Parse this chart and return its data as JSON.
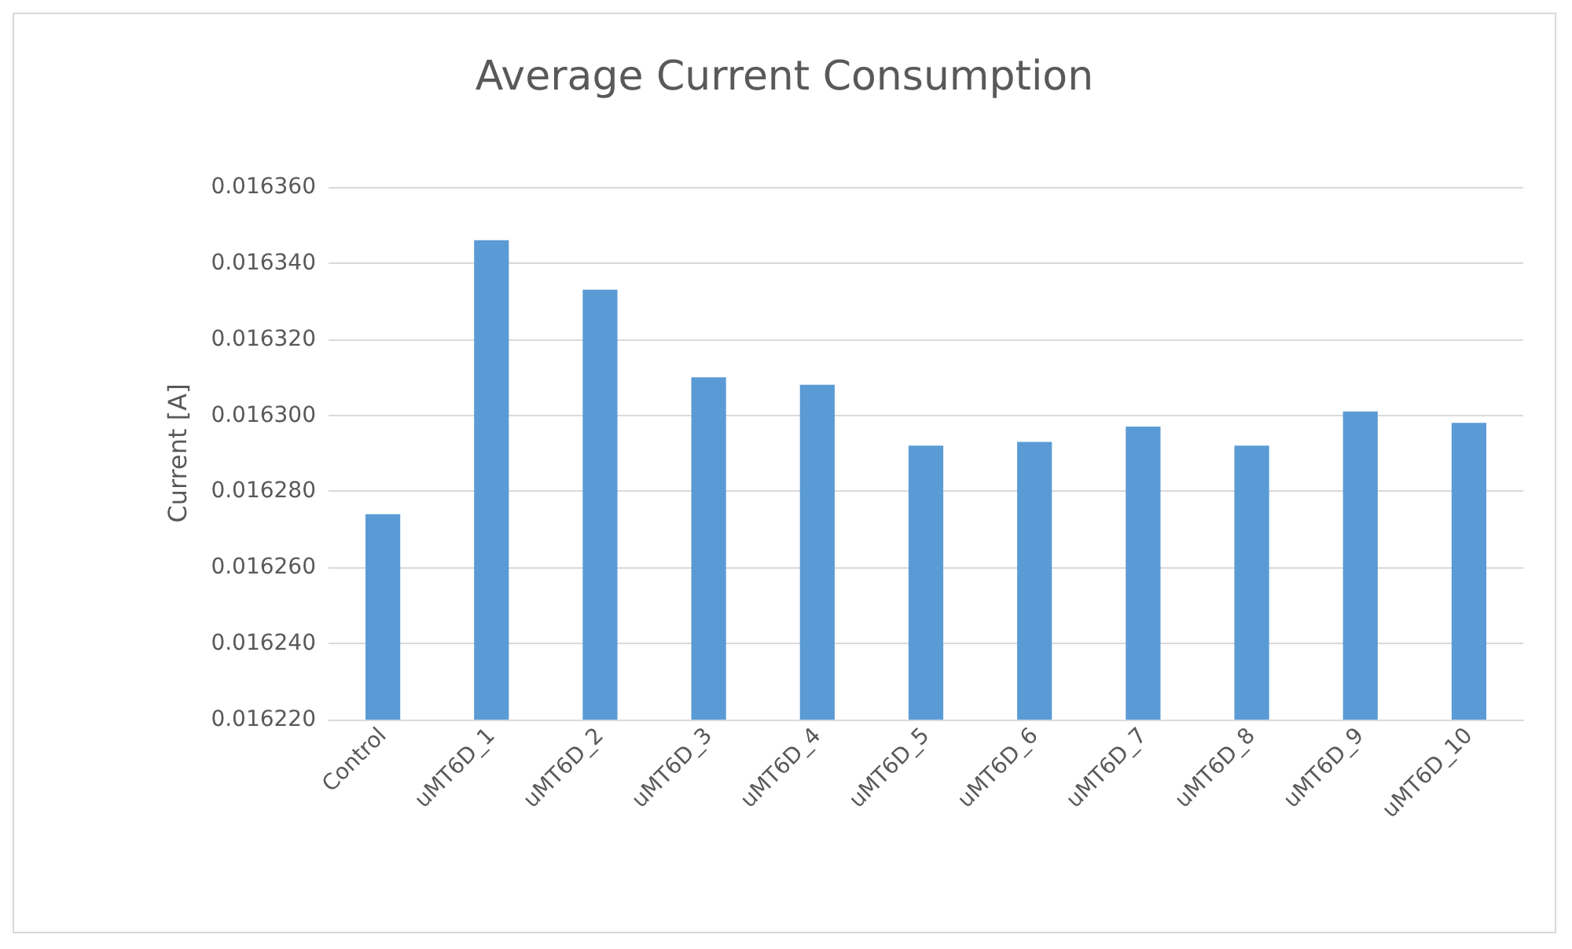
{
  "chart_data": {
    "type": "bar",
    "title": "Average Current Consumption",
    "ylabel": "Current [A]",
    "categories": [
      "Control",
      "uMT6D_1",
      "uMT6D_2",
      "uMT6D_3",
      "uMT6D_4",
      "uMT6D_5",
      "uMT6D_6",
      "uMT6D_7",
      "uMT6D_8",
      "uMT6D_9",
      "uMT6D_10"
    ],
    "values": [
      0.016274,
      0.016346,
      0.016333,
      0.01631,
      0.016308,
      0.016292,
      0.016293,
      0.016297,
      0.016292,
      0.016301,
      0.016298
    ],
    "color": "#5b9bd5",
    "ylim": [
      0.01622,
      0.01636
    ],
    "yticks": [
      {
        "value": 0.01622,
        "label": "0.016220"
      },
      {
        "value": 0.01624,
        "label": "0.016240"
      },
      {
        "value": 0.01626,
        "label": "0.016260"
      },
      {
        "value": 0.01628,
        "label": "0.016280"
      },
      {
        "value": 0.0163,
        "label": "0.016300"
      },
      {
        "value": 0.01632,
        "label": "0.016320"
      },
      {
        "value": 0.01634,
        "label": "0.016340"
      },
      {
        "value": 0.01636,
        "label": "0.016360"
      }
    ],
    "grid": "y"
  }
}
